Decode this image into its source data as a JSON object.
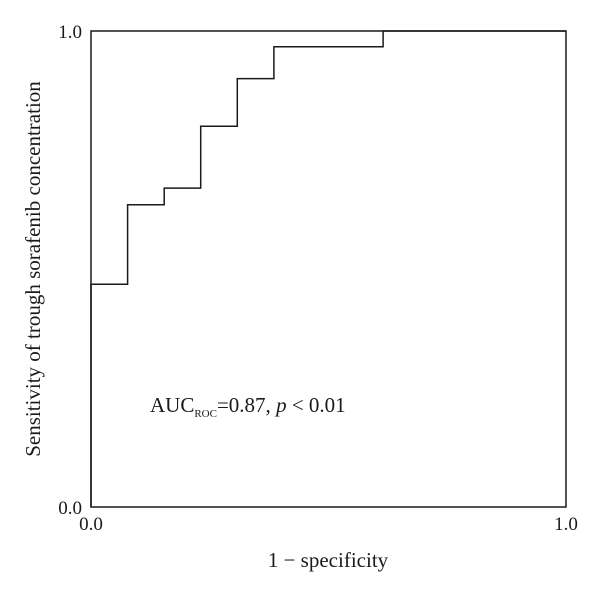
{
  "chart_data": {
    "type": "line",
    "title": "",
    "xlabel": "1 − specificity",
    "ylabel": "Sensitivity of trough sorafenib concentration",
    "xlim": [
      0.0,
      1.0
    ],
    "ylim": [
      0.0,
      1.0
    ],
    "x_ticks": [
      "0.0",
      "1.0"
    ],
    "y_ticks": [
      "0.0",
      "1.0"
    ],
    "grid": false,
    "legend": "none",
    "line_color": "#1a1a1a",
    "series": [
      {
        "x": [
          0.0,
          0.0,
          0.077,
          0.077,
          0.154,
          0.154,
          0.231,
          0.231,
          0.308,
          0.308,
          0.385,
          0.385,
          0.615,
          0.615,
          1.0
        ],
        "y": [
          0.0,
          0.468,
          0.468,
          0.635,
          0.635,
          0.67,
          0.67,
          0.8,
          0.8,
          0.9,
          0.9,
          0.967,
          0.967,
          1.0,
          1.0
        ]
      }
    ],
    "annotation": {
      "base": "AUC",
      "subscript": "ROC",
      "value_text": "=0.87, ",
      "p_symbol": "p",
      "p_text": " < 0.01"
    }
  }
}
